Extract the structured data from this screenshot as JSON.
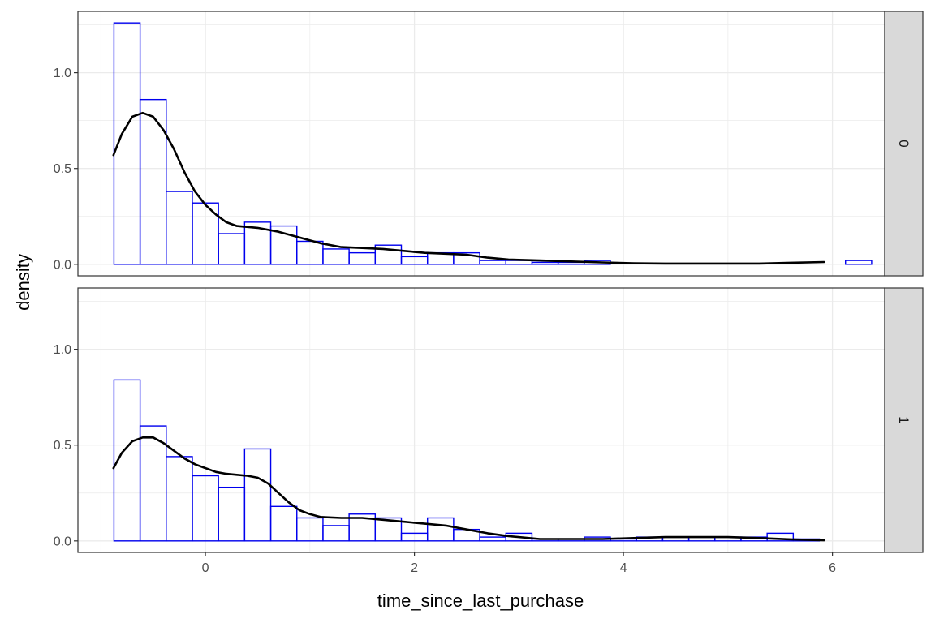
{
  "chart_data": {
    "type": "bar",
    "subtype": "faceted histogram with density overlay",
    "xlabel": "time_since_last_purchase",
    "ylabel": "density",
    "xlim": [
      -1.22,
      6.5
    ],
    "ylim": [
      -0.06,
      1.32
    ],
    "x_ticks": [
      0,
      2,
      4,
      6
    ],
    "x_tick_labels": [
      "0",
      "2",
      "4",
      "6"
    ],
    "y_ticks": [
      0.0,
      0.5,
      1.0
    ],
    "y_tick_labels": [
      "0.0",
      "0.5",
      "1.0"
    ],
    "grid": true,
    "bin_width": 0.25,
    "bin_start": -0.875,
    "colors": {
      "bar_outline": "#0000ee",
      "density_line": "#000000",
      "strip_fill": "#d9d9d9",
      "grid": "#ebebeb",
      "panel_border": "#333333"
    },
    "panels": [
      {
        "facet_label": "0",
        "hist_values": [
          1.26,
          0.86,
          0.38,
          0.32,
          0.16,
          0.22,
          0.2,
          0.12,
          0.08,
          0.06,
          0.1,
          0.04,
          0.06,
          0.06,
          0.02,
          0.02,
          0.01,
          0.01,
          0.02,
          0.0,
          0.0,
          0.0,
          0.0,
          0.0,
          0.0,
          0.0,
          0.0,
          0.0,
          0.02
        ],
        "density_x": [
          -0.88,
          -0.8,
          -0.7,
          -0.6,
          -0.5,
          -0.4,
          -0.3,
          -0.2,
          -0.1,
          0.0,
          0.1,
          0.2,
          0.3,
          0.5,
          0.7,
          0.9,
          1.1,
          1.3,
          1.5,
          1.7,
          1.9,
          2.1,
          2.3,
          2.5,
          2.7,
          2.9,
          3.2,
          3.5,
          3.8,
          4.1,
          4.4,
          4.7,
          5.0,
          5.3,
          5.6,
          5.92
        ],
        "density_y": [
          0.57,
          0.68,
          0.77,
          0.79,
          0.77,
          0.7,
          0.6,
          0.48,
          0.38,
          0.31,
          0.26,
          0.22,
          0.2,
          0.19,
          0.17,
          0.14,
          0.11,
          0.09,
          0.085,
          0.08,
          0.07,
          0.06,
          0.055,
          0.05,
          0.035,
          0.025,
          0.02,
          0.015,
          0.01,
          0.005,
          0.004,
          0.004,
          0.004,
          0.004,
          0.008,
          0.012
        ]
      },
      {
        "facet_label": "1",
        "hist_values": [
          0.84,
          0.6,
          0.44,
          0.34,
          0.28,
          0.48,
          0.18,
          0.12,
          0.08,
          0.14,
          0.12,
          0.04,
          0.12,
          0.06,
          0.02,
          0.04,
          0.01,
          0.01,
          0.02,
          0.01,
          0.02,
          0.02,
          0.02,
          0.02,
          0.02,
          0.04,
          0.01,
          0.0,
          0.0,
          0.0
        ],
        "density_x": [
          -0.88,
          -0.8,
          -0.7,
          -0.6,
          -0.5,
          -0.4,
          -0.3,
          -0.2,
          -0.1,
          0.0,
          0.1,
          0.2,
          0.3,
          0.4,
          0.5,
          0.6,
          0.7,
          0.8,
          0.9,
          1.0,
          1.1,
          1.3,
          1.5,
          1.7,
          1.9,
          2.1,
          2.3,
          2.5,
          2.7,
          2.9,
          3.2,
          3.5,
          3.8,
          4.1,
          4.4,
          4.7,
          5.0,
          5.3,
          5.6,
          5.92
        ],
        "density_y": [
          0.38,
          0.46,
          0.52,
          0.54,
          0.54,
          0.51,
          0.47,
          0.43,
          0.4,
          0.38,
          0.36,
          0.35,
          0.345,
          0.34,
          0.33,
          0.3,
          0.25,
          0.2,
          0.16,
          0.14,
          0.125,
          0.12,
          0.12,
          0.11,
          0.1,
          0.09,
          0.08,
          0.06,
          0.04,
          0.025,
          0.01,
          0.01,
          0.01,
          0.015,
          0.02,
          0.02,
          0.02,
          0.015,
          0.008,
          0.003
        ]
      }
    ]
  }
}
